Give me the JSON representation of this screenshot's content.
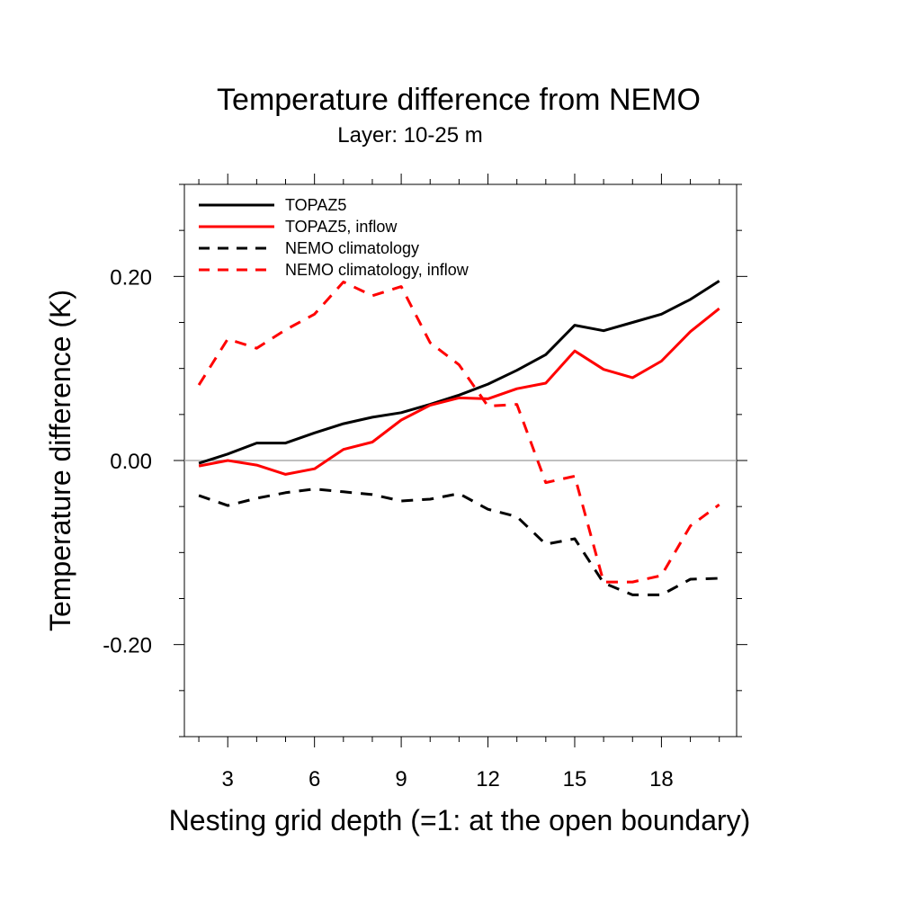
{
  "chart_data": {
    "type": "line",
    "title": "Temperature difference from NEMO",
    "subtitle": "Layer: 10-25 m",
    "xlabel": "Nesting grid depth (=1: at the open boundary)",
    "ylabel": "Temperature difference (K)",
    "xlim": [
      1.5,
      20.6
    ],
    "ylim": [
      -0.3,
      0.3
    ],
    "xticks": [
      3,
      6,
      9,
      12,
      15,
      18
    ],
    "xtick_labels": [
      "3",
      "6",
      "9",
      "12",
      "15",
      "18"
    ],
    "yticks": [
      -0.2,
      0.0,
      0.2
    ],
    "ytick_labels": [
      "-0.20",
      "0.00",
      "0.20"
    ],
    "zero_line": true,
    "grid": false,
    "legend_position": "top-left",
    "x": [
      2,
      3,
      4,
      5,
      6,
      7,
      8,
      9,
      10,
      11,
      12,
      13,
      14,
      15,
      16,
      17,
      18,
      19,
      20
    ],
    "series": [
      {
        "name": "TOPAZ5",
        "color": "#000000",
        "dash": "solid",
        "values": [
          -0.003,
          0.007,
          0.019,
          0.019,
          0.03,
          0.04,
          0.047,
          0.052,
          0.061,
          0.071,
          0.083,
          0.098,
          0.115,
          0.147,
          0.141,
          0.15,
          0.159,
          0.175,
          0.195
        ]
      },
      {
        "name": "TOPAZ5, inflow",
        "color": "#ff0000",
        "dash": "solid",
        "values": [
          -0.006,
          0.0,
          -0.005,
          -0.015,
          -0.009,
          0.012,
          0.02,
          0.044,
          0.06,
          0.068,
          0.067,
          0.078,
          0.084,
          0.119,
          0.099,
          0.09,
          0.108,
          0.14,
          0.165
        ]
      },
      {
        "name": "NEMO climatology",
        "color": "#000000",
        "dash": "dashed",
        "values": [
          -0.038,
          -0.049,
          -0.041,
          -0.035,
          -0.031,
          -0.034,
          -0.037,
          -0.044,
          -0.042,
          -0.036,
          -0.053,
          -0.061,
          -0.091,
          -0.085,
          -0.133,
          -0.146,
          -0.146,
          -0.129,
          -0.128
        ]
      },
      {
        "name": "NEMO climatology, inflow",
        "color": "#ff0000",
        "dash": "dashed",
        "values": [
          0.082,
          0.132,
          0.122,
          0.142,
          0.159,
          0.194,
          0.179,
          0.189,
          0.128,
          0.104,
          0.059,
          0.061,
          -0.024,
          -0.017,
          -0.132,
          -0.132,
          -0.125,
          -0.071,
          -0.048
        ]
      }
    ]
  }
}
